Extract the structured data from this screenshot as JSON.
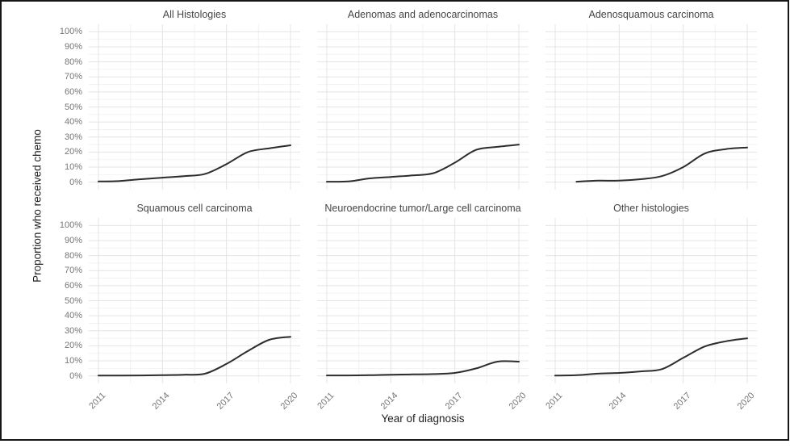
{
  "figure": {
    "x_axis_title": "Year of diagnosis",
    "y_axis_title": "Proportion who received chemo",
    "x_tick_labels": [
      "2011",
      "2014",
      "2017",
      "2020"
    ],
    "y_tick_labels": [
      "0%",
      "10%",
      "20%",
      "30%",
      "40%",
      "50%",
      "60%",
      "70%",
      "80%",
      "90%",
      "100%"
    ],
    "colors": {
      "line": "#2d2d2d",
      "grid_major": "#e4e4e4",
      "grid_minor": "#f2f2f2",
      "tick_label": "#767676",
      "panel_title": "#454545",
      "axis_title": "#1f1f1f",
      "border": "#161616",
      "background": "#ffffff"
    }
  },
  "chart_data": [
    {
      "type": "line",
      "title": "All Histologies",
      "xlabel": "Year of diagnosis",
      "ylabel": "Proportion who received chemo",
      "ylim": [
        0,
        100
      ],
      "x_ticks": [
        2011,
        2014,
        2017,
        2020
      ],
      "x": [
        2011,
        2012,
        2013,
        2014,
        2015,
        2016,
        2017,
        2018,
        2019,
        2020
      ],
      "y_percent": [
        0.5,
        0.8,
        2,
        3,
        4,
        5.5,
        12,
        20,
        22.5,
        24.5
      ]
    },
    {
      "type": "line",
      "title": "Adenomas and adenocarcinomas",
      "xlabel": "Year of diagnosis",
      "ylabel": "Proportion who received chemo",
      "ylim": [
        0,
        100
      ],
      "x_ticks": [
        2011,
        2014,
        2017,
        2020
      ],
      "x": [
        2011,
        2012,
        2013,
        2014,
        2015,
        2016,
        2017,
        2018,
        2019,
        2020
      ],
      "y_percent": [
        0.3,
        0.5,
        2.5,
        3.5,
        4.5,
        6,
        13,
        21.5,
        23.5,
        25
      ]
    },
    {
      "type": "line",
      "title": "Adenosquamous carcinoma",
      "xlabel": "Year of diagnosis",
      "ylabel": "Proportion who received chemo",
      "ylim": [
        0,
        100
      ],
      "x_ticks": [
        2011,
        2014,
        2017,
        2020
      ],
      "x": [
        2012,
        2013,
        2014,
        2015,
        2016,
        2017,
        2018,
        2019,
        2020
      ],
      "y_percent": [
        0.3,
        1,
        1,
        2,
        4,
        10,
        19,
        22,
        23
      ]
    },
    {
      "type": "line",
      "title": "Squamous cell carcinoma",
      "xlabel": "Year of diagnosis",
      "ylabel": "Proportion who received chemo",
      "ylim": [
        0,
        100
      ],
      "x_ticks": [
        2011,
        2014,
        2017,
        2020
      ],
      "x": [
        2011,
        2012,
        2013,
        2014,
        2015,
        2016,
        2017,
        2018,
        2019,
        2020
      ],
      "y_percent": [
        0.2,
        0.2,
        0.3,
        0.5,
        0.8,
        1.5,
        8,
        16.5,
        24,
        26
      ]
    },
    {
      "type": "line",
      "title": "Neuroendocrine tumor/Large cell carcinoma",
      "xlabel": "Year of diagnosis",
      "ylabel": "Proportion who received chemo",
      "ylim": [
        0,
        100
      ],
      "x_ticks": [
        2011,
        2014,
        2017,
        2020
      ],
      "x": [
        2011,
        2012,
        2013,
        2014,
        2015,
        2016,
        2017,
        2018,
        2019,
        2020
      ],
      "y_percent": [
        0.3,
        0.3,
        0.5,
        0.8,
        1,
        1.2,
        2,
        5,
        9.5,
        9.5
      ]
    },
    {
      "type": "line",
      "title": "Other histologies",
      "xlabel": "Year of diagnosis",
      "ylabel": "Proportion who received chemo",
      "ylim": [
        0,
        100
      ],
      "x_ticks": [
        2011,
        2014,
        2017,
        2020
      ],
      "x": [
        2011,
        2012,
        2013,
        2014,
        2015,
        2016,
        2017,
        2018,
        2019,
        2020
      ],
      "y_percent": [
        0.2,
        0.5,
        1.5,
        2,
        3,
        4.5,
        12,
        19.5,
        23,
        25
      ]
    }
  ]
}
